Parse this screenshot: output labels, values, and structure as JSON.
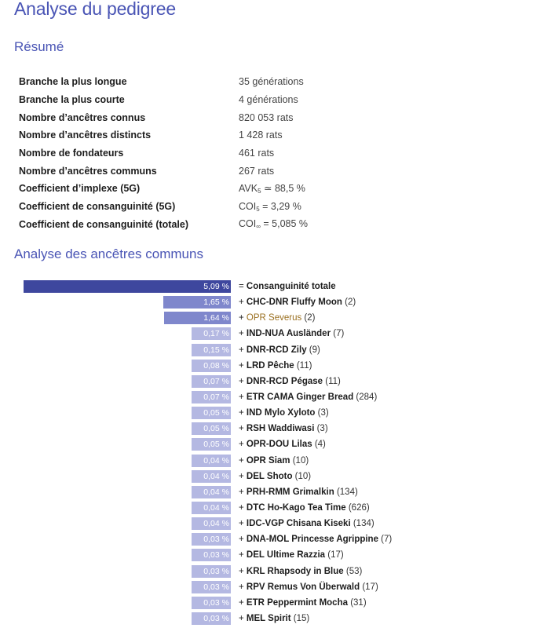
{
  "page": {
    "title": "Analyse du pedigree",
    "summary_heading": "Résumé",
    "ancestors_heading": "Analyse des ancêtres communs"
  },
  "summary": [
    {
      "label": "Branche la plus longue",
      "value": "35 générations"
    },
    {
      "label": "Branche la plus courte",
      "value": "4 générations"
    },
    {
      "label": "Nombre d’ancêtres connus",
      "value": "820 053 rats"
    },
    {
      "label": "Nombre d’ancêtres distincts",
      "value": "1 428 rats"
    },
    {
      "label": "Nombre de fondateurs",
      "value": "461 rats"
    },
    {
      "label": "Nombre d’ancêtres communs",
      "value": "267 rats"
    },
    {
      "label": "Coefficient d’implexe (5G)",
      "value_prefix": "AVK",
      "value_sub": "5",
      "value_suffix": " ≃ 88,5 %"
    },
    {
      "label": "Coefficient de consanguinité (5G)",
      "value_prefix": "COI",
      "value_sub": "5",
      "value_suffix": " = 3,29 %"
    },
    {
      "label": "Coefficient de consanguinité (totale)",
      "value_prefix": "COI",
      "value_sub": "∞",
      "value_suffix": " = 5,085 %"
    }
  ],
  "chart_data": {
    "type": "bar",
    "orientation": "horizontal",
    "colors": {
      "total": "#3e479e",
      "large": "#7f87cc",
      "small": "#b4b8e2"
    },
    "rows": [
      {
        "pct_label": "5,09 %",
        "value": 5.09,
        "prefix": "= ",
        "name": "Consanguinité totale",
        "count": "",
        "main": true
      },
      {
        "pct_label": "1,65 %",
        "value": 1.65,
        "prefix": "+ ",
        "name": "CHC-DNR Fluffy Moon",
        "count": "(2)"
      },
      {
        "pct_label": "1,64 %",
        "value": 1.64,
        "prefix": "+ ",
        "name": "OPR Severus",
        "count": "(2)",
        "link": true
      },
      {
        "pct_label": "0,17 %",
        "value": 0.17,
        "prefix": "+ ",
        "name": "IND-NUA Ausländer",
        "count": "(7)"
      },
      {
        "pct_label": "0,15 %",
        "value": 0.15,
        "prefix": "+ ",
        "name": "DNR-RCD Zily",
        "count": "(9)"
      },
      {
        "pct_label": "0,08 %",
        "value": 0.08,
        "prefix": "+ ",
        "name": "LRD Pêche",
        "count": "(11)"
      },
      {
        "pct_label": "0,07 %",
        "value": 0.07,
        "prefix": "+ ",
        "name": "DNR-RCD Pégase",
        "count": "(11)"
      },
      {
        "pct_label": "0,07 %",
        "value": 0.07,
        "prefix": "+ ",
        "name": "ETR CAMA Ginger Bread",
        "count": "(284)"
      },
      {
        "pct_label": "0,05 %",
        "value": 0.05,
        "prefix": "+ ",
        "name": "IND Mylo Xyloto",
        "count": "(3)"
      },
      {
        "pct_label": "0,05 %",
        "value": 0.05,
        "prefix": "+ ",
        "name": "RSH Waddiwasi",
        "count": "(3)"
      },
      {
        "pct_label": "0,05 %",
        "value": 0.05,
        "prefix": "+ ",
        "name": "OPR-DOU Lilas",
        "count": "(4)"
      },
      {
        "pct_label": "0,04 %",
        "value": 0.04,
        "prefix": "+ ",
        "name": "OPR Siam",
        "count": "(10)"
      },
      {
        "pct_label": "0,04 %",
        "value": 0.04,
        "prefix": "+ ",
        "name": "DEL Shoto",
        "count": "(10)"
      },
      {
        "pct_label": "0,04 %",
        "value": 0.04,
        "prefix": "+ ",
        "name": "PRH-RMM Grimalkin",
        "count": "(134)"
      },
      {
        "pct_label": "0,04 %",
        "value": 0.04,
        "prefix": "+ ",
        "name": "DTC Ho-Kago Tea Time",
        "count": "(626)"
      },
      {
        "pct_label": "0,04 %",
        "value": 0.04,
        "prefix": "+ ",
        "name": "IDC-VGP Chisana Kiseki",
        "count": "(134)"
      },
      {
        "pct_label": "0,03 %",
        "value": 0.03,
        "prefix": "+ ",
        "name": "DNA-MOL Princesse Agrippine",
        "count": "(7)"
      },
      {
        "pct_label": "0,03 %",
        "value": 0.03,
        "prefix": "+ ",
        "name": "DEL Ultime Razzia",
        "count": "(17)"
      },
      {
        "pct_label": "0,03 %",
        "value": 0.03,
        "prefix": "+ ",
        "name": "KRL Rhapsody in Blue",
        "count": "(53)"
      },
      {
        "pct_label": "0,03 %",
        "value": 0.03,
        "prefix": "+ ",
        "name": "RPV Remus Von Überwald",
        "count": "(17)"
      },
      {
        "pct_label": "0,03 %",
        "value": 0.03,
        "prefix": "+ ",
        "name": "ETR Peppermint Mocha",
        "count": "(31)"
      },
      {
        "pct_label": "0,03 %",
        "value": 0.03,
        "prefix": "+ ",
        "name": "MEL Spirit",
        "count": "(15)"
      }
    ]
  }
}
